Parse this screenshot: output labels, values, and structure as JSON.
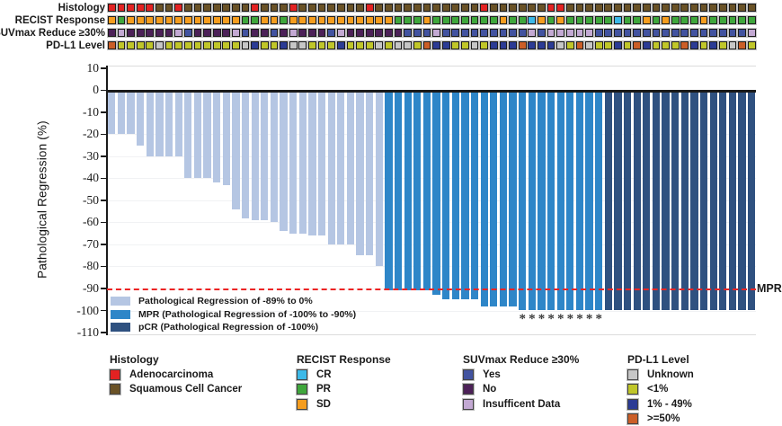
{
  "tracks": {
    "rows": [
      {
        "key": "histology",
        "label": "Histology"
      },
      {
        "key": "recist",
        "label": "RECIST Response"
      },
      {
        "key": "suvmax",
        "label": "SUVmax Reduce ≥30%"
      },
      {
        "key": "pdl1",
        "label": "PD-L1 Level"
      }
    ],
    "histology": [
      "A",
      "A",
      "A",
      "A",
      "A",
      "S",
      "S",
      "A",
      "S",
      "S",
      "S",
      "S",
      "S",
      "S",
      "S",
      "A",
      "S",
      "S",
      "S",
      "A",
      "S",
      "S",
      "S",
      "S",
      "S",
      "S",
      "S",
      "A",
      "S",
      "S",
      "S",
      "S",
      "S",
      "S",
      "S",
      "S",
      "S",
      "S",
      "S",
      "A",
      "S",
      "S",
      "S",
      "S",
      "S",
      "S",
      "A",
      "A",
      "S",
      "S",
      "S",
      "S",
      "S",
      "S",
      "S",
      "S",
      "S",
      "S",
      "S",
      "S",
      "S",
      "S",
      "S",
      "S",
      "S",
      "S",
      "S",
      "S"
    ],
    "recist": [
      "SD",
      "PR",
      "SD",
      "SD",
      "SD",
      "SD",
      "SD",
      "SD",
      "SD",
      "SD",
      "SD",
      "SD",
      "SD",
      "SD",
      "PR",
      "PR",
      "SD",
      "SD",
      "PR",
      "SD",
      "SD",
      "SD",
      "SD",
      "SD",
      "SD",
      "SD",
      "SD",
      "SD",
      "SD",
      "SD",
      "PR",
      "PR",
      "PR",
      "SD",
      "PR",
      "PR",
      "PR",
      "PR",
      "PR",
      "PR",
      "PR",
      "SD",
      "PR",
      "PR",
      "CR",
      "SD",
      "PR",
      "SD",
      "PR",
      "PR",
      "PR",
      "PR",
      "PR",
      "CR",
      "PR",
      "PR",
      "SD",
      "PR",
      "SD",
      "PR",
      "PR",
      "PR",
      "SD",
      "PR",
      "PR",
      "PR",
      "PR",
      "PR"
    ],
    "suvmax": [
      "N",
      "I",
      "N",
      "N",
      "N",
      "N",
      "N",
      "I",
      "Y",
      "N",
      "N",
      "N",
      "N",
      "I",
      "Y",
      "N",
      "N",
      "Y",
      "N",
      "I",
      "N",
      "N",
      "N",
      "Y",
      "I",
      "N",
      "N",
      "N",
      "N",
      "N",
      "N",
      "Y",
      "Y",
      "Y",
      "I",
      "Y",
      "Y",
      "Y",
      "Y",
      "Y",
      "Y",
      "Y",
      "Y",
      "Y",
      "I",
      "Y",
      "I",
      "I",
      "I",
      "I",
      "I",
      "Y",
      "Y",
      "Y",
      "Y",
      "Y",
      "Y",
      "Y",
      "Y",
      "Y",
      "Y",
      "Y",
      "Y",
      "Y",
      "Y",
      "Y",
      "Y",
      "I"
    ],
    "pdl1": [
      "GE50",
      "LT1",
      "LT1",
      "LT1",
      "LT1",
      "U",
      "LT1",
      "LT1",
      "LT1",
      "LT1",
      "LT1",
      "LT1",
      "LT1",
      "LT1",
      "U",
      "MID",
      "LT1",
      "LT1",
      "MID",
      "U",
      "U",
      "LT1",
      "LT1",
      "LT1",
      "MID",
      "LT1",
      "LT1",
      "LT1",
      "U",
      "LT1",
      "U",
      "U",
      "LT1",
      "GE50",
      "MID",
      "MID",
      "LT1",
      "LT1",
      "U",
      "LT1",
      "MID",
      "MID",
      "MID",
      "GE50",
      "MID",
      "MID",
      "MID",
      "U",
      "LT1",
      "GE50",
      "U",
      "LT1",
      "LT1",
      "MID",
      "LT1",
      "GE50",
      "MID",
      "LT1",
      "LT1",
      "LT1",
      "GE50",
      "MID",
      "LT1",
      "MID",
      "LT1",
      "U",
      "GE50",
      "LT1"
    ],
    "palette": {
      "histology": {
        "A": "#e32222",
        "S": "#6a5226"
      },
      "recist": {
        "SD": "#f59d1f",
        "PR": "#3fa73c",
        "CR": "#3cb9e8"
      },
      "suvmax": {
        "Y": "#4253a0",
        "N": "#4c2158",
        "I": "#c3a9d3"
      },
      "pdl1": {
        "U": "#c6c6c6",
        "LT1": "#c0c629",
        "MID": "#2b3b94",
        "GE50": "#cb5e27"
      }
    }
  },
  "chart_data": {
    "type": "bar",
    "title": "",
    "xlabel": "",
    "ylabel": "Pathological Regression (%)",
    "ylim": [
      -110,
      10
    ],
    "yticks": [
      10,
      0,
      -10,
      -20,
      -30,
      -40,
      -50,
      -60,
      -70,
      -80,
      -90,
      -100,
      -110
    ],
    "n_patients": 68,
    "values": [
      -20,
      -20,
      -20,
      -25,
      -30,
      -30,
      -30,
      -30,
      -40,
      -40,
      -40,
      -42,
      -43,
      -54,
      -58,
      -59,
      -59,
      -60,
      -64,
      -65,
      -65,
      -66,
      -66,
      -70,
      -70,
      -70,
      -75,
      -75,
      -80,
      -91,
      -91,
      -91,
      -91,
      -91,
      -93,
      -95,
      -95,
      -95,
      -95,
      -98,
      -98,
      -98,
      -98,
      -100,
      -100,
      -100,
      -100,
      -100,
      -100,
      -100,
      -100,
      -100,
      -100,
      -100,
      -100,
      -100,
      -100,
      -100,
      -100,
      -100,
      -100,
      -100,
      -100,
      -100,
      -100,
      -100,
      -100,
      -100
    ],
    "classes": [
      "reg",
      "reg",
      "reg",
      "reg",
      "reg",
      "reg",
      "reg",
      "reg",
      "reg",
      "reg",
      "reg",
      "reg",
      "reg",
      "reg",
      "reg",
      "reg",
      "reg",
      "reg",
      "reg",
      "reg",
      "reg",
      "reg",
      "reg",
      "reg",
      "reg",
      "reg",
      "reg",
      "reg",
      "reg",
      "mpr",
      "mpr",
      "mpr",
      "mpr",
      "mpr",
      "mpr",
      "mpr",
      "mpr",
      "mpr",
      "mpr",
      "mpr",
      "mpr",
      "mpr",
      "mpr",
      "mpr",
      "mpr",
      "mpr",
      "mpr",
      "mpr",
      "mpr",
      "mpr",
      "mpr",
      "mpr",
      "pcr",
      "pcr",
      "pcr",
      "pcr",
      "pcr",
      "pcr",
      "pcr",
      "pcr",
      "pcr",
      "pcr",
      "pcr",
      "pcr",
      "pcr",
      "pcr",
      "pcr",
      "pcr"
    ],
    "bar_colors": {
      "reg": "#b5c6e3",
      "mpr": "#2e86c8",
      "pcr": "#2f5180"
    },
    "threshold_line": {
      "value": -90,
      "label": "MPR",
      "color": "#ec2424",
      "style": "dashed"
    },
    "asterisk_indices": [
      43,
      44,
      45,
      46,
      47,
      48,
      49,
      50,
      51
    ],
    "asterisk_symbol": "*",
    "grid": "faint horizontal",
    "legend_position": "inside bottom-left"
  },
  "plot_legend": {
    "items": [
      {
        "key": "reg",
        "label": "Pathological Regression of -89% to 0%"
      },
      {
        "key": "mpr",
        "label": "MPR (Pathological Regression of -100% to -90%)"
      },
      {
        "key": "pcr",
        "label": "pCR (Pathological Regression of -100%)"
      }
    ]
  },
  "bottom_legends": [
    {
      "title": "Histology",
      "x": 122,
      "items": [
        {
          "label": "Adenocarcinoma",
          "color": "#e32222"
        },
        {
          "label": "Squamous Cell Cancer",
          "color": "#6a5226"
        }
      ]
    },
    {
      "title": "RECIST Response",
      "x": 330,
      "items": [
        {
          "label": "CR",
          "color": "#3cb9e8"
        },
        {
          "label": "PR",
          "color": "#3fa73c"
        },
        {
          "label": "SD",
          "color": "#f59d1f"
        }
      ]
    },
    {
      "title": "SUVmax Reduce ≥30%",
      "x": 515,
      "items": [
        {
          "label": "Yes",
          "color": "#4253a0"
        },
        {
          "label": "No",
          "color": "#4c2158"
        },
        {
          "label": "Insufficent Data",
          "color": "#c3a9d3"
        }
      ]
    },
    {
      "title": "PD-L1 Level",
      "x": 698,
      "items": [
        {
          "label": "Unknown",
          "color": "#c6c6c6"
        },
        {
          "label": "<1%",
          "color": "#c0c629"
        },
        {
          "label": "1% - 49%",
          "color": "#2b3b94"
        },
        {
          "label": ">=50%",
          "color": "#cb5e27"
        }
      ]
    }
  ]
}
